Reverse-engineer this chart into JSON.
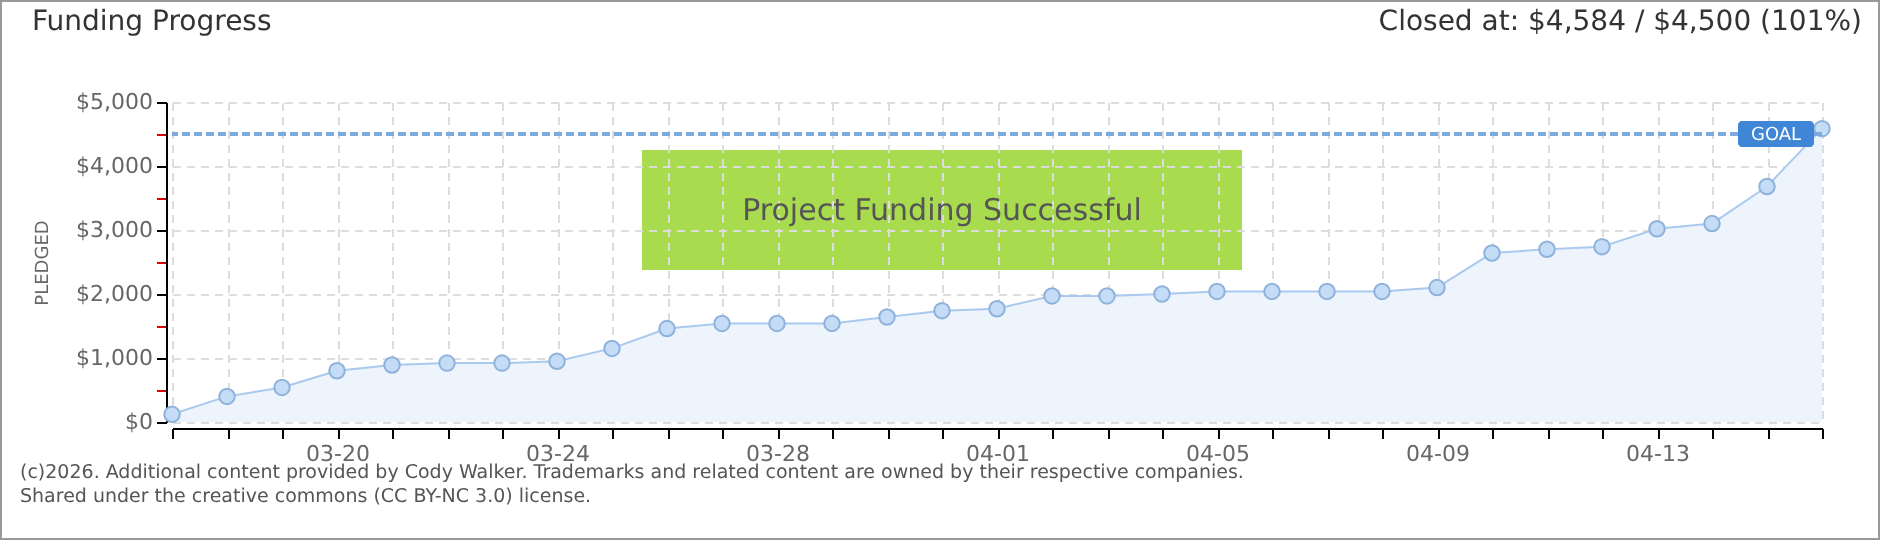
{
  "chart_data": {
    "type": "area",
    "title": "Funding Progress",
    "subtitle": "Closed at: $4,584 / $4,500 (101%)",
    "ylabel": "PLEDGED",
    "x": [
      "--03-17",
      "--03-18",
      "--03-19",
      "--03-20",
      "--03-21",
      "--03-22",
      "--03-23",
      "--03-24",
      "--03-25",
      "--03-26",
      "--03-27",
      "--03-28",
      "--03-29",
      "--03-30",
      "--03-31",
      "--04-01",
      "--04-02",
      "--04-03",
      "--04-04",
      "--04-05",
      "--04-06",
      "--04-07",
      "--04-08",
      "--04-09",
      "--04-10",
      "--04-11",
      "--04-12",
      "--04-13",
      "--04-14",
      "--04-15",
      "--04-16"
    ],
    "series": [
      {
        "color": "#a9c9ef",
        "values": [
          120,
          400,
          540,
          800,
          890,
          920,
          920,
          950,
          1150,
          1460,
          1540,
          1540,
          1540,
          1640,
          1740,
          1770,
          1970,
          1970,
          2000,
          2040,
          2040,
          2040,
          2040,
          2100,
          2640,
          2700,
          2740,
          3020,
          3100,
          3680,
          4584
        ]
      }
    ],
    "xlim": [
      "--03-17",
      "--04-16"
    ],
    "xticks": [
      {
        "value": "--03-17",
        "label": null
      },
      {
        "value": "--03-18",
        "label": null
      },
      {
        "value": "--03-19",
        "label": null
      },
      {
        "value": "--03-20",
        "label": "03-20"
      },
      {
        "value": "--03-21",
        "label": null
      },
      {
        "value": "--03-22",
        "label": null
      },
      {
        "value": "--03-23",
        "label": null
      },
      {
        "value": "--03-24",
        "label": "03-24"
      },
      {
        "value": "--03-25",
        "label": null
      },
      {
        "value": "--03-26",
        "label": null
      },
      {
        "value": "--03-27",
        "label": null
      },
      {
        "value": "--03-28",
        "label": "03-28"
      },
      {
        "value": "--03-29",
        "label": null
      },
      {
        "value": "--03-30",
        "label": null
      },
      {
        "value": "--03-31",
        "label": null
      },
      {
        "value": "--04-01",
        "label": "04-01"
      },
      {
        "value": "--04-02",
        "label": null
      },
      {
        "value": "--04-03",
        "label": null
      },
      {
        "value": "--04-04",
        "label": null
      },
      {
        "value": "--04-05",
        "label": "04-05"
      },
      {
        "value": "--04-06",
        "label": null
      },
      {
        "value": "--04-07",
        "label": null
      },
      {
        "value": "--04-08",
        "label": null
      },
      {
        "value": "--04-09",
        "label": "04-09"
      },
      {
        "value": "--04-10",
        "label": null
      },
      {
        "value": "--04-11",
        "label": null
      },
      {
        "value": "--04-12",
        "label": null
      },
      {
        "value": "--04-13",
        "label": "04-13"
      },
      {
        "value": "--04-14",
        "label": null
      },
      {
        "value": "--04-15",
        "label": null
      },
      {
        "value": "--04-16",
        "label": null
      }
    ],
    "ylim": [
      0,
      5000
    ],
    "yticks": [
      {
        "value": 0,
        "label": "$0"
      },
      {
        "value": 500,
        "label": null
      },
      {
        "value": 1000,
        "label": "$1,000"
      },
      {
        "value": 1500,
        "label": null
      },
      {
        "value": 2000,
        "label": "$2,000"
      },
      {
        "value": 2500,
        "label": null
      },
      {
        "value": 3000,
        "label": "$3,000"
      },
      {
        "value": 3500,
        "label": null
      },
      {
        "value": 4000,
        "label": "$4,000"
      },
      {
        "value": 4500,
        "label": null
      },
      {
        "value": 5000,
        "label": "$5,000"
      }
    ],
    "ref_lines": [
      {
        "axis": "y",
        "value": 4500,
        "label": "GOAL",
        "color": "#7ea9dd",
        "line_style": "dashed"
      }
    ],
    "annotations": [
      "Project Funding Successful",
      "(c)2026. Additional content provided by Cody Walker. Trademarks and related content are owned by their respective companies.",
      "Shared under the creative commons (CC BY-NC 3.0) license."
    ],
    "grid": true,
    "marker": "circle",
    "line_style": "solid"
  }
}
